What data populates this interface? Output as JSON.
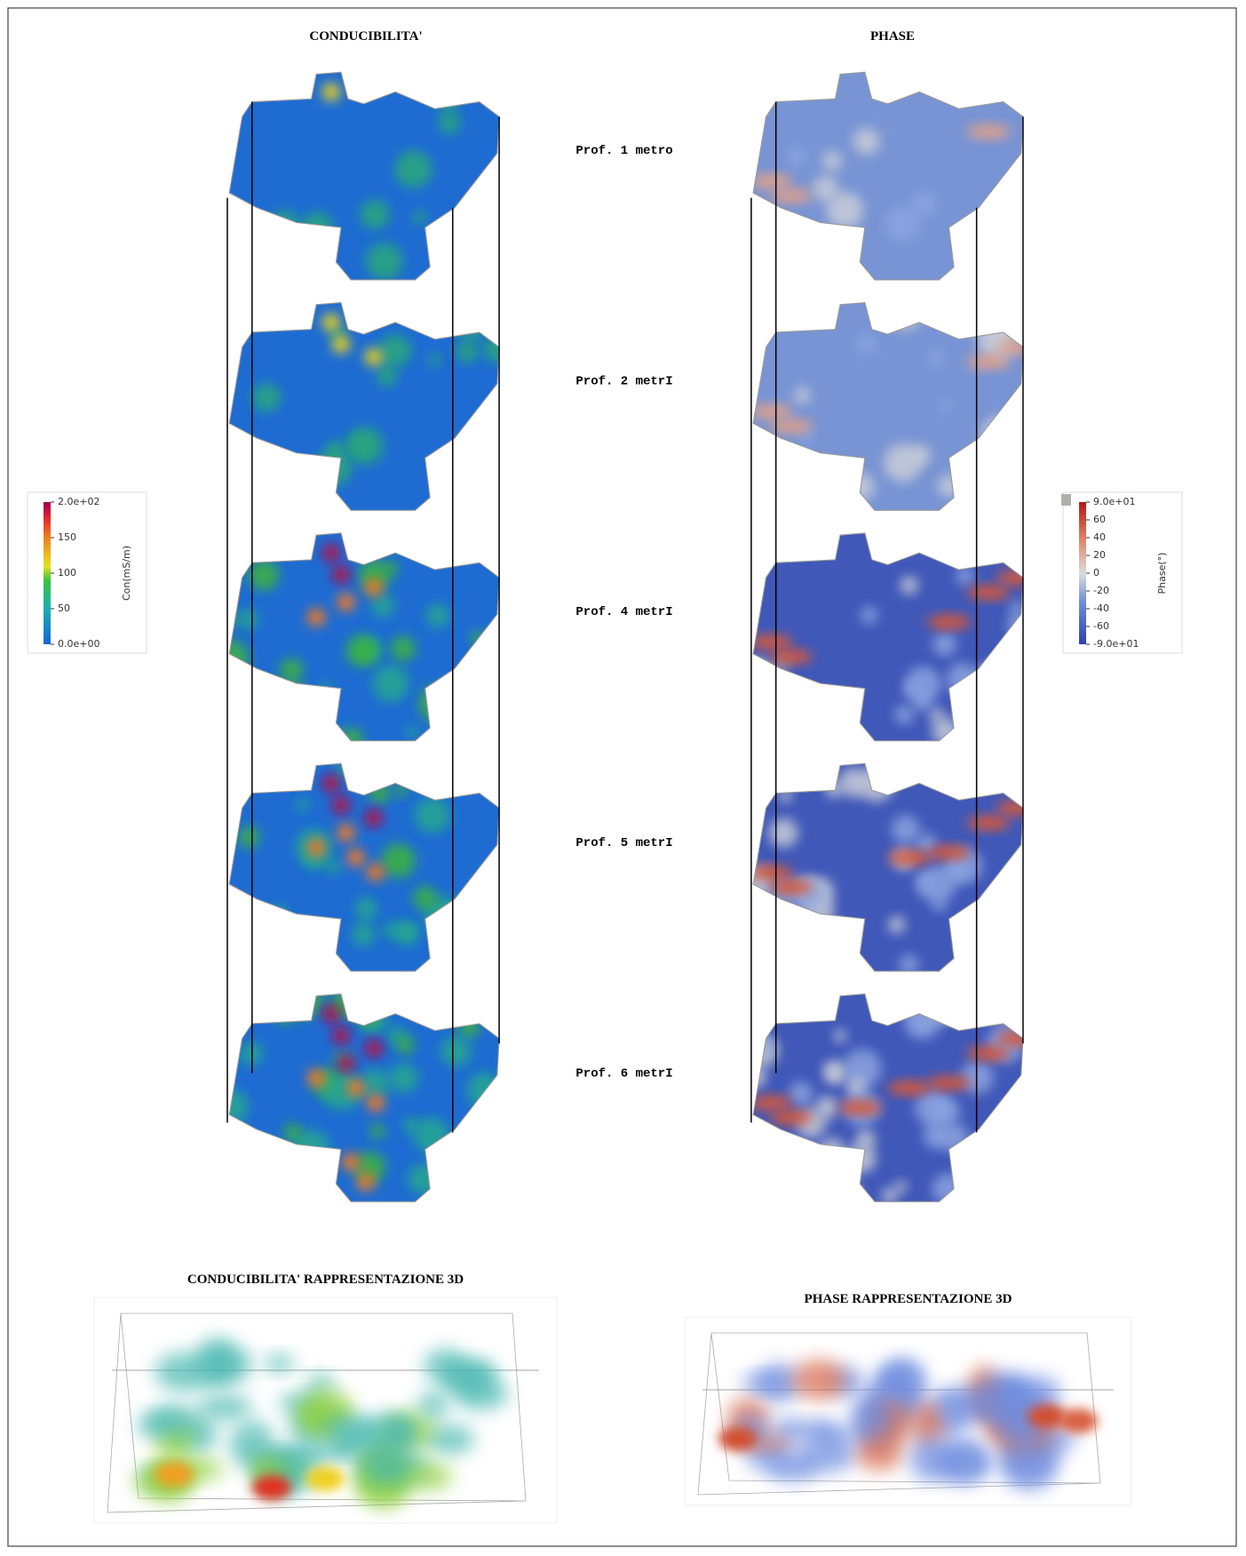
{
  "header": {
    "left_title": "CONDUCIBILITA'",
    "right_title": "PHASE"
  },
  "depth_labels": [
    "Prof. 1 metro",
    "Prof. 2 metrI",
    "Prof. 4 metrI",
    "Prof. 5 metrI",
    "Prof. 6 metrI"
  ],
  "colorbars": [
    {
      "title": "Con(mS/m)",
      "ticks": [
        "2.0e+02",
        "150",
        "100",
        "50",
        "0.0e+00"
      ]
    },
    {
      "title": "Phase(°)",
      "ticks": [
        "9.0e+01",
        "60",
        "40",
        "20",
        "0",
        "-20",
        "-40",
        "-60",
        "-9.0e+01"
      ]
    }
  ],
  "views_3d": [
    {
      "title": "CONDUCIBILITA' RAPPRESENTAZIONE 3D"
    },
    {
      "title": "PHASE RAPPRESENTAZIONE 3D"
    }
  ]
}
